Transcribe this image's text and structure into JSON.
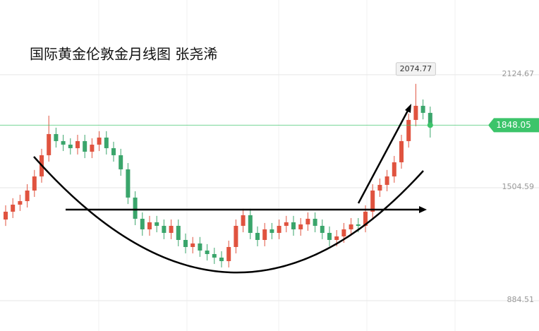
{
  "chart_data": {
    "type": "candlestick",
    "title": "国际黄金伦敦金月线图 张尧浠",
    "open": [
      1330.0,
      1372.9,
      1411.6,
      1431.0,
      1489.1,
      1566.6,
      1682.9,
      1799.1,
      1760.4,
      1741.0,
      1721.6,
      1760.4,
      1702.3,
      1741.0,
      1779.8,
      1721.6,
      1682.9,
      1605.4,
      1450.4,
      1334.1,
      1276.0,
      1314.7,
      1295.3,
      1256.6,
      1295.3,
      1217.8,
      1179.1,
      1198.5,
      1159.7,
      1140.3,
      1120.9,
      1101.6,
      1179.1,
      1295.3,
      1353.5,
      1256.6,
      1217.8,
      1276.0,
      1256.6,
      1295.3,
      1314.7,
      1276.0,
      1303.1,
      1334.1,
      1295.3,
      1256.6,
      1217.8,
      1237.2,
      1276.0,
      1303.1,
      1295.3,
      1372.9,
      1489.1,
      1520.1,
      1566.6,
      1644.1,
      1760.4,
      1876.7,
      1954.2,
      1915.4
    ],
    "high": [
      1408,
      1447,
      1466,
      1524,
      1602,
      1718,
      1900,
      1834,
      1795,
      1776,
      1795,
      1795,
      1776,
      1815,
      1815,
      1757,
      1718,
      1640,
      1485,
      1369,
      1350,
      1350,
      1330,
      1330,
      1330,
      1253,
      1234,
      1234,
      1195,
      1175,
      1156,
      1214,
      1330,
      1389,
      1389,
      1292,
      1311,
      1311,
      1330,
      1350,
      1350,
      1338,
      1369,
      1369,
      1330,
      1292,
      1272,
      1311,
      1338,
      1338,
      1408,
      1524,
      1555,
      1602,
      1679,
      1795,
      1912,
      2074.77,
      1989,
      1950
    ],
    "low": [
      1295,
      1338,
      1377,
      1396,
      1454,
      1532,
      1648,
      1725,
      1706,
      1687,
      1687,
      1667,
      1667,
      1706,
      1687,
      1648,
      1570,
      1415,
      1299,
      1241,
      1241,
      1260,
      1222,
      1222,
      1183,
      1144,
      1144,
      1125,
      1105,
      1086,
      1067,
      1067,
      1144,
      1260,
      1222,
      1183,
      1183,
      1222,
      1222,
      1260,
      1241,
      1241,
      1268,
      1260,
      1222,
      1183,
      1183,
      1202,
      1241,
      1260,
      1260,
      1338,
      1454,
      1485,
      1532,
      1609,
      1725,
      1842,
      1880,
      1780
    ],
    "close": [
      1372.9,
      1411.6,
      1431.0,
      1489.1,
      1566.6,
      1682.9,
      1799.1,
      1760.4,
      1741.0,
      1721.6,
      1760.4,
      1702.3,
      1741.0,
      1779.8,
      1721.6,
      1682.9,
      1605.4,
      1450.4,
      1334.1,
      1276.0,
      1314.7,
      1295.3,
      1256.6,
      1295.3,
      1217.8,
      1179.1,
      1198.5,
      1159.7,
      1140.3,
      1120.9,
      1101.6,
      1179.1,
      1295.3,
      1353.5,
      1256.6,
      1217.8,
      1276.0,
      1256.6,
      1295.3,
      1314.7,
      1276.0,
      1303.1,
      1334.1,
      1295.3,
      1256.6,
      1217.8,
      1237.2,
      1276.0,
      1303.1,
      1295.3,
      1372.9,
      1489.1,
      1520.1,
      1566.6,
      1644.1,
      1760.4,
      1876.7,
      1954.2,
      1915.4,
      1848.05
    ],
    "up_color": "#e0533f",
    "down_color": "#3aa56b",
    "last_color": "#3cc46a",
    "ylim": [
      718,
      2535
    ],
    "yticks": [
      884.51,
      1504.59,
      2124.67
    ],
    "grid": true
  }
}
